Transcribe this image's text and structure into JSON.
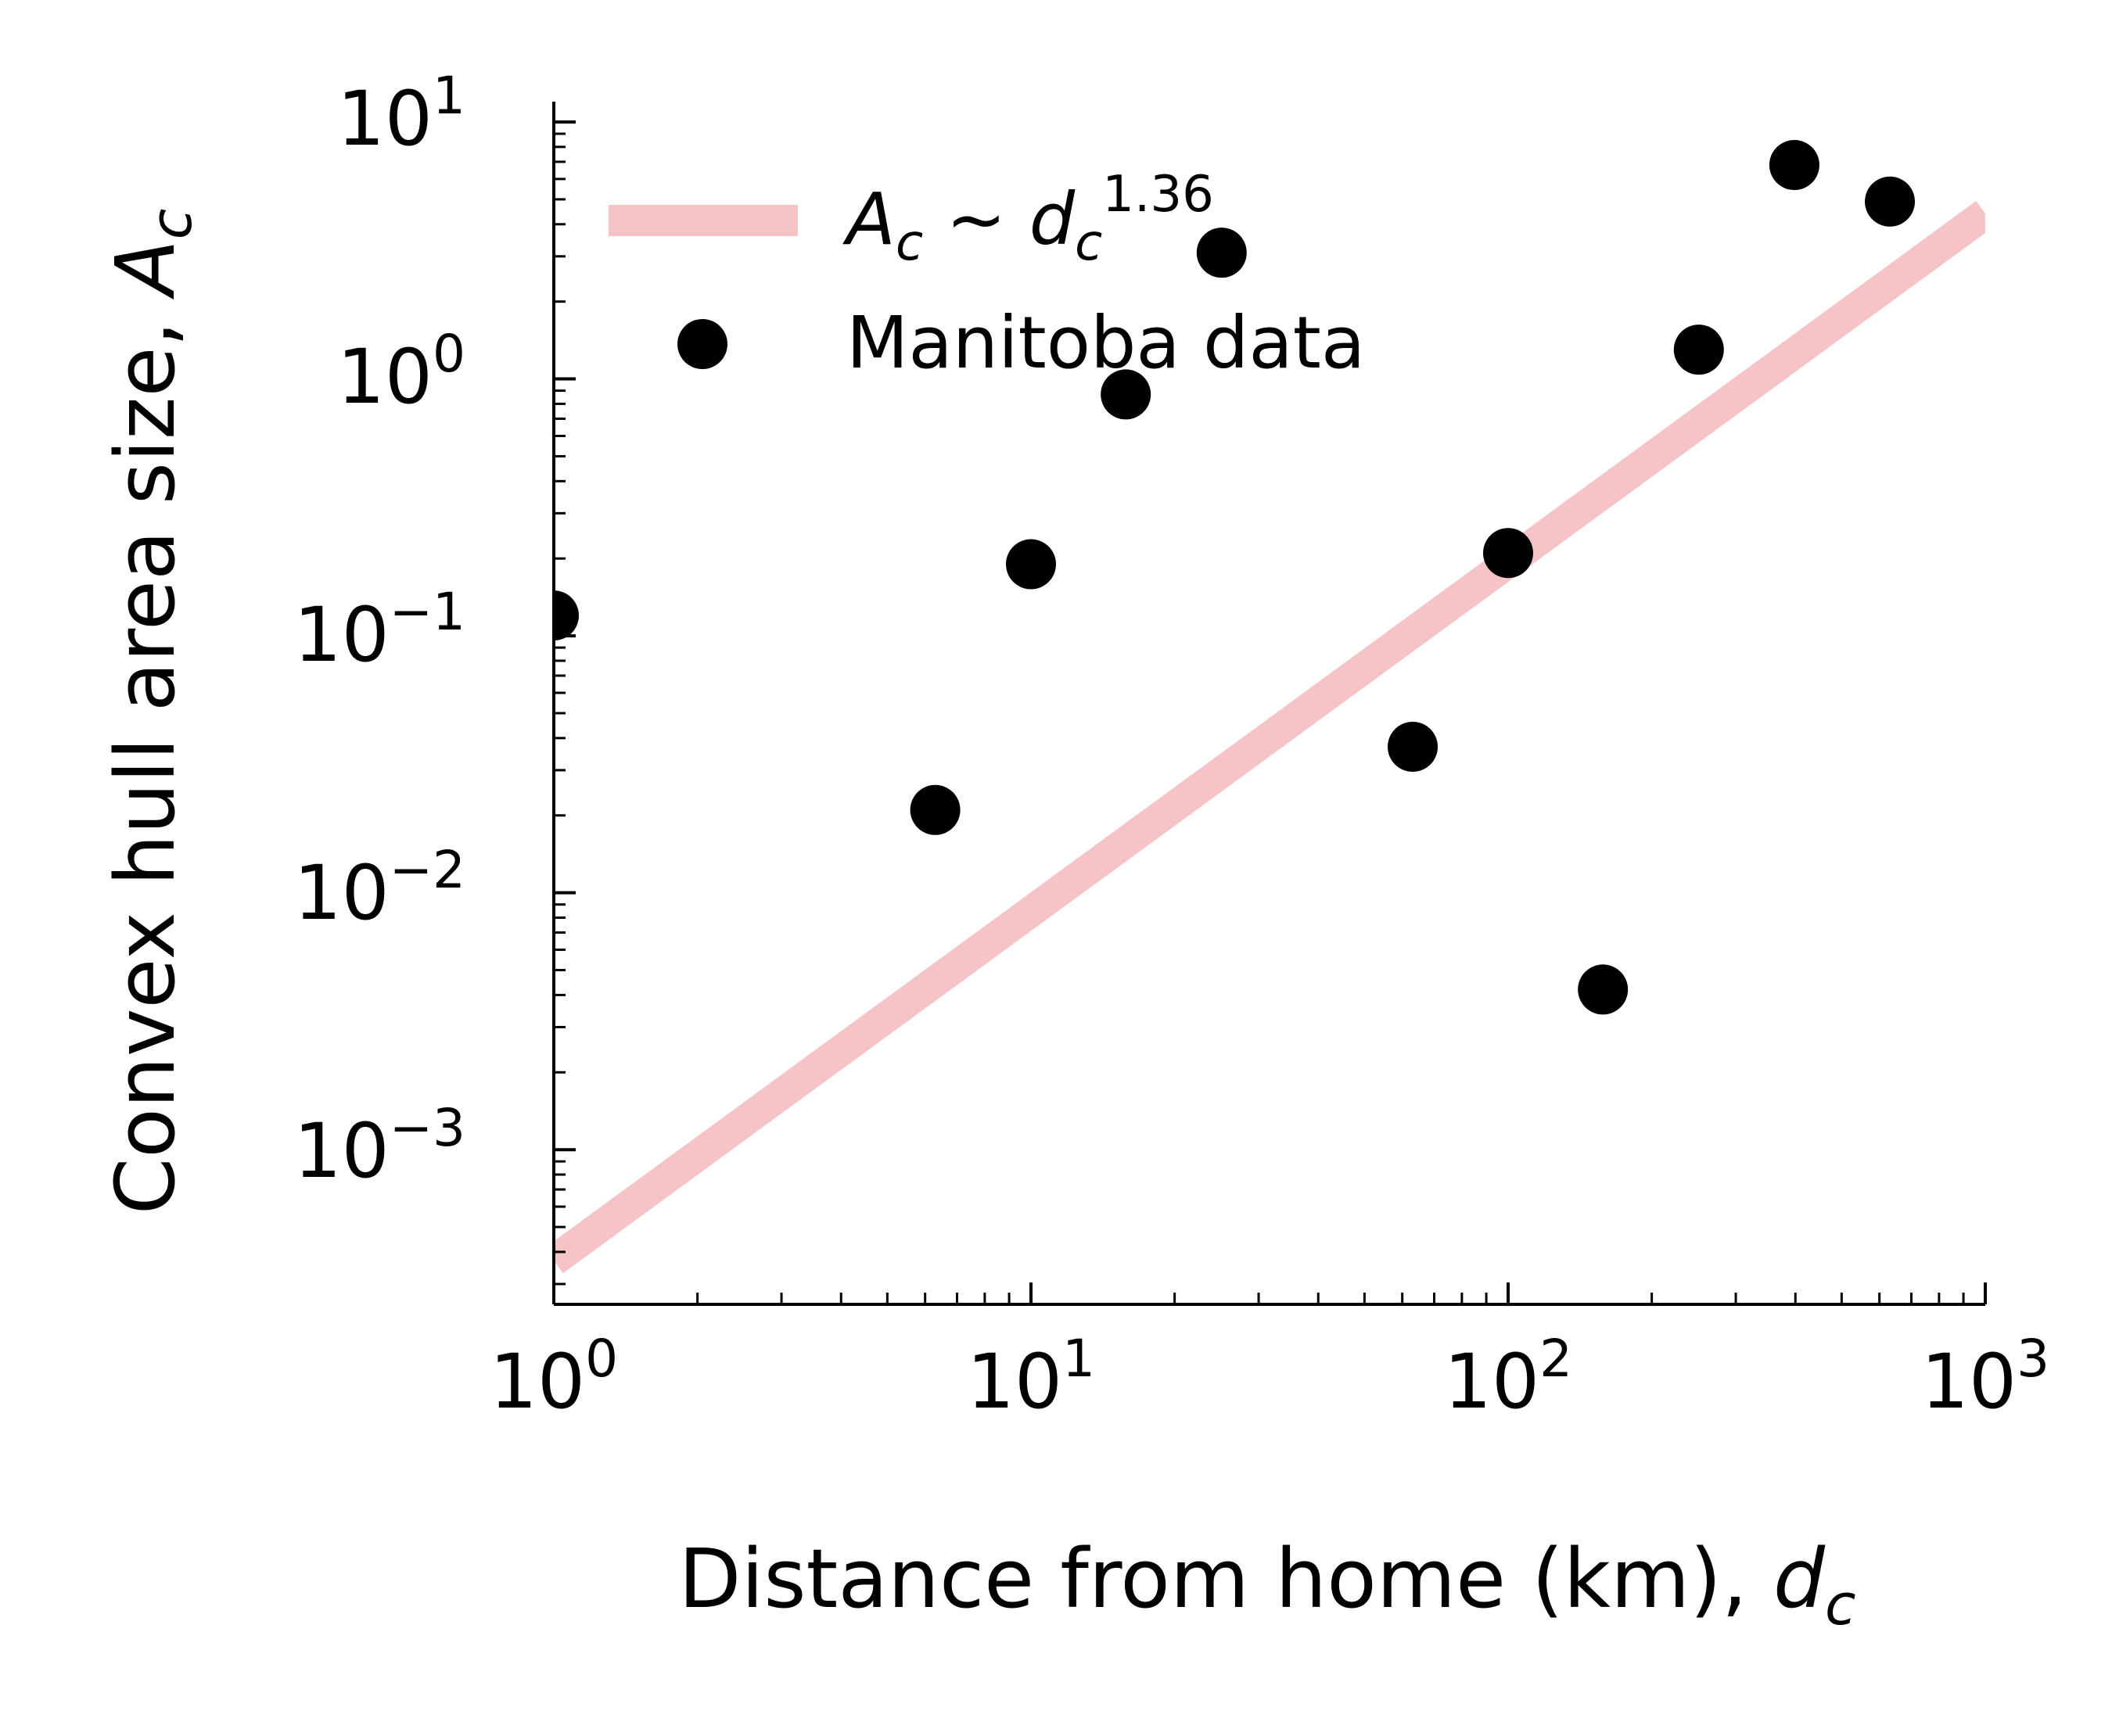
{
  "chart_data": {
    "type": "scatter",
    "xlabel": "Distance from home (km), d_c",
    "ylabel": "Convex hull area size, A_c",
    "xscale": "log",
    "yscale": "log",
    "xlim": [
      1,
      1000
    ],
    "ylim": [
      0.00025,
      12
    ],
    "grid": false,
    "legend_position": "top-left",
    "x_ticks": [
      "10^0",
      "10^1",
      "10^2",
      "10^3"
    ],
    "y_ticks": [
      "10^-3",
      "10^-2",
      "10^-1",
      "10^0",
      "10^1"
    ],
    "series": [
      {
        "name": "A_c ~ d_c^1.36",
        "kind": "line",
        "color": "#f6c4c6",
        "x": [
          1,
          1000
        ],
        "y": [
          0.00037,
          4.4
        ]
      },
      {
        "name": "Manitoba data",
        "kind": "scatter",
        "color": "#000000",
        "x": [
          1.0,
          6.3,
          10.0,
          15.8,
          25.1,
          63.1,
          100,
          158,
          251,
          398,
          631
        ],
        "y": [
          0.12,
          0.021,
          0.19,
          0.87,
          3.1,
          0.037,
          0.21,
          0.0042,
          1.3,
          6.8,
          4.9
        ]
      }
    ]
  },
  "x_tick_labels": [
    {
      "base": "10",
      "exp": "0"
    },
    {
      "base": "10",
      "exp": "1"
    },
    {
      "base": "10",
      "exp": "2"
    },
    {
      "base": "10",
      "exp": "3"
    }
  ],
  "y_tick_labels": [
    {
      "base": "10",
      "exp": "−3"
    },
    {
      "base": "10",
      "exp": "−2"
    },
    {
      "base": "10",
      "exp": "−1"
    },
    {
      "base": "10",
      "exp": "0"
    },
    {
      "base": "10",
      "exp": "1"
    }
  ],
  "axis_text": {
    "xlabel_main": "Distance from home (km), ",
    "xlabel_var": "d",
    "xlabel_sub": "c",
    "ylabel_main": "Convex hull area size, ",
    "ylabel_var": "A",
    "ylabel_sub": "c"
  },
  "legend": {
    "fit_var_a": "A",
    "fit_sub_a": "c",
    "fit_sim": " ~ ",
    "fit_var_d": "d",
    "fit_sub_d": "c",
    "fit_exp": "1.36",
    "data_label": "Manitoba data"
  }
}
